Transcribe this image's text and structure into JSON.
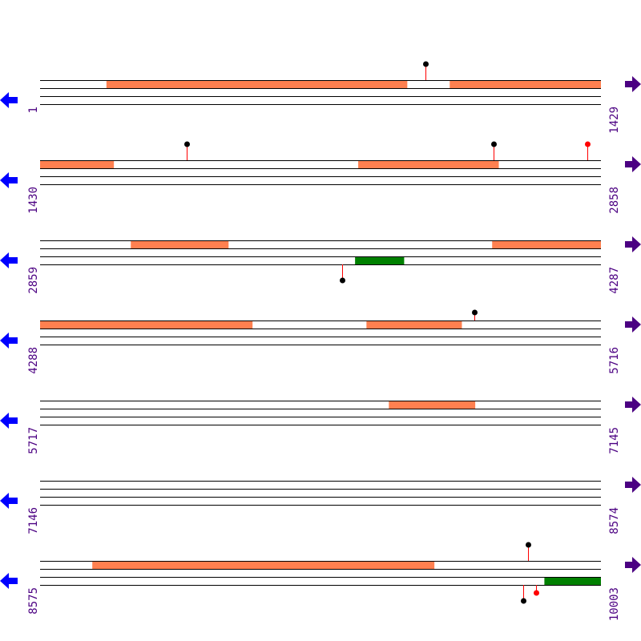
{
  "colors": {
    "forward_feature": "#ff8050",
    "reverse_feature": "#008000",
    "line": "#000000",
    "stem": "#ff0000",
    "label": "#4b0082",
    "left_arrow": "#0000ff",
    "right_arrow": "#4b0082"
  },
  "icons": {
    "left": "arrow-left-icon",
    "right": "arrow-right-icon"
  },
  "rows": [
    {
      "start": "1",
      "end": "1429",
      "s": 1,
      "e": 1429,
      "forward": [
        [
          170,
          936
        ],
        [
          1044,
          1429
        ]
      ],
      "reverse": [],
      "markers": [
        {
          "pos": 983,
          "side": "top",
          "color": "#000000"
        }
      ]
    },
    {
      "start": "1430",
      "end": "2858",
      "s": 1430,
      "e": 2858,
      "forward": [
        [
          1430,
          1618
        ],
        [
          2240,
          2598
        ]
      ],
      "reverse": [],
      "markers": [
        {
          "pos": 1804,
          "side": "top",
          "color": "#000000"
        },
        {
          "pos": 2585,
          "side": "top",
          "color": "#000000"
        },
        {
          "pos": 2824,
          "side": "top",
          "color": "#ff0000"
        }
      ]
    },
    {
      "start": "2859",
      "end": "4287",
      "s": 2859,
      "e": 4287,
      "forward": [
        [
          3090,
          3339
        ],
        [
          4010,
          4287
        ]
      ],
      "reverse": [
        [
          3661,
          3786
        ]
      ],
      "markers": [
        {
          "pos": 3629,
          "side": "bottom",
          "color": "#000000"
        }
      ]
    },
    {
      "start": "4288",
      "end": "5716",
      "s": 4288,
      "e": 5716,
      "forward": [
        [
          4288,
          4829
        ],
        [
          5119,
          5362
        ]
      ],
      "reverse": [],
      "markers": [
        {
          "pos": 5394,
          "side": "top-short",
          "color": "#000000"
        }
      ]
    },
    {
      "start": "5717",
      "end": "7145",
      "s": 5717,
      "e": 7145,
      "forward": [
        [
          6605,
          6825
        ]
      ],
      "reverse": [],
      "markers": []
    },
    {
      "start": "7146",
      "end": "8574",
      "s": 7146,
      "e": 8574,
      "forward": [],
      "reverse": [],
      "markers": []
    },
    {
      "start": "8575",
      "end": "10003",
      "s": 8575,
      "e": 10003,
      "forward": [
        [
          8708,
          9579
        ]
      ],
      "reverse": [
        [
          9859,
          10003
        ]
      ],
      "markers": [
        {
          "pos": 9818,
          "side": "top",
          "color": "#000000"
        },
        {
          "pos": 9806,
          "side": "bottom",
          "color": "#000000"
        },
        {
          "pos": 9837,
          "side": "bottom-short",
          "color": "#ff0000"
        }
      ]
    }
  ]
}
